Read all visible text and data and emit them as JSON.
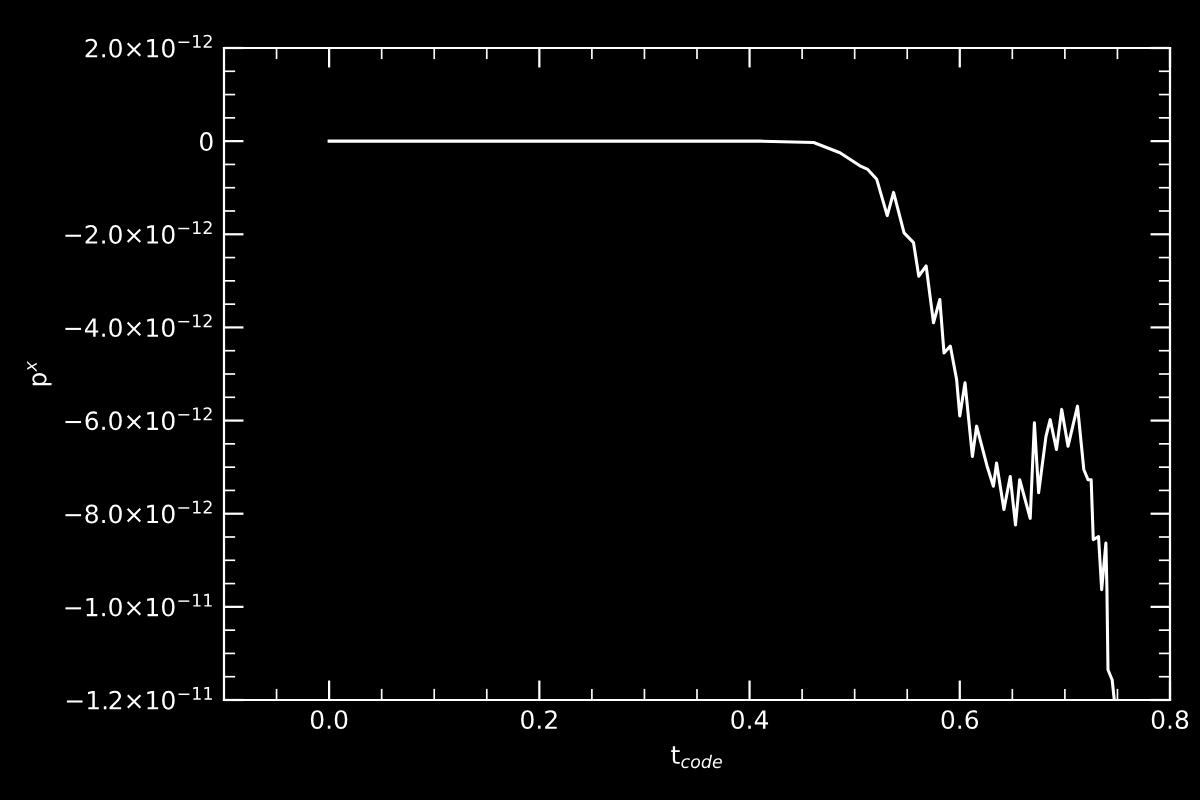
{
  "chart_data": {
    "type": "line",
    "xlabel": "t$_{code}$",
    "ylabel": "p$^{x}$",
    "xlim": [
      -0.1,
      0.8
    ],
    "xticks": [
      {
        "value": 0.0,
        "label": "0.0"
      },
      {
        "value": 0.2,
        "label": "0.2"
      },
      {
        "value": 0.4,
        "label": "0.4"
      },
      {
        "value": 0.6,
        "label": "0.6"
      },
      {
        "value": 0.8,
        "label": "0.8"
      }
    ],
    "ylim": [
      -1.2e-11,
      2e-12
    ],
    "yticks": [
      {
        "value": 2e-12,
        "label": "2.0×10$^{−12}$"
      },
      {
        "value": 0,
        "label": "0"
      },
      {
        "value": -2e-12,
        "label": "−2.0×10$^{−12}$"
      },
      {
        "value": -4e-12,
        "label": "−4.0×10$^{−12}$"
      },
      {
        "value": -6e-12,
        "label": "−6.0×10$^{−12}$"
      },
      {
        "value": -8e-12,
        "label": "−8.0×10$^{−12}$"
      },
      {
        "value": -1e-11,
        "label": "−1.0×10$^{−11}$"
      },
      {
        "value": -1.2e-11,
        "label": "−1.2×10$^{−11}$"
      }
    ],
    "grid": false,
    "marker": "none",
    "line_style": "solid",
    "series": [
      {
        "color": "#ffffff",
        "x": [
          0.0,
          0.41,
          0.461,
          0.486,
          0.505,
          0.512,
          0.521,
          0.531,
          0.537,
          0.547,
          0.556,
          0.561,
          0.568,
          0.575,
          0.581,
          0.585,
          0.591,
          0.597,
          0.6,
          0.605,
          0.612,
          0.616,
          0.626,
          0.632,
          0.635,
          0.642,
          0.648,
          0.653,
          0.657,
          0.667,
          0.671,
          0.675,
          0.682,
          0.686,
          0.692,
          0.697,
          0.703,
          0.712,
          0.718,
          0.722,
          0.725,
          0.727,
          0.732,
          0.735,
          0.739,
          0.74,
          0.741,
          0.745,
          0.747
        ],
        "values": [
          0,
          0,
          -3e-14,
          -2.5e-13,
          -5.3e-13,
          -6e-13,
          -8.2e-13,
          -1.6e-12,
          -1.1e-12,
          -1.97e-12,
          -2.18e-12,
          -2.9e-12,
          -2.68e-12,
          -3.9e-12,
          -3.4e-12,
          -4.55e-12,
          -4.4e-12,
          -5.12e-12,
          -5.9e-12,
          -5.19e-12,
          -6.77e-12,
          -6.12e-12,
          -6.98e-12,
          -7.41e-12,
          -6.91e-12,
          -7.91e-12,
          -7.2e-12,
          -8.24e-12,
          -7.27e-12,
          -8.1e-12,
          -6.05e-12,
          -7.55e-12,
          -6.34e-12,
          -5.98e-12,
          -6.62e-12,
          -5.76e-12,
          -6.55e-12,
          -5.69e-12,
          -7.05e-12,
          -7.27e-12,
          -7.27e-12,
          -8.56e-12,
          -8.49e-12,
          -9.63e-12,
          -8.63e-12,
          -9.63e-12,
          -1.135e-11,
          -1.157e-11,
          -1.2e-11
        ]
      }
    ]
  }
}
